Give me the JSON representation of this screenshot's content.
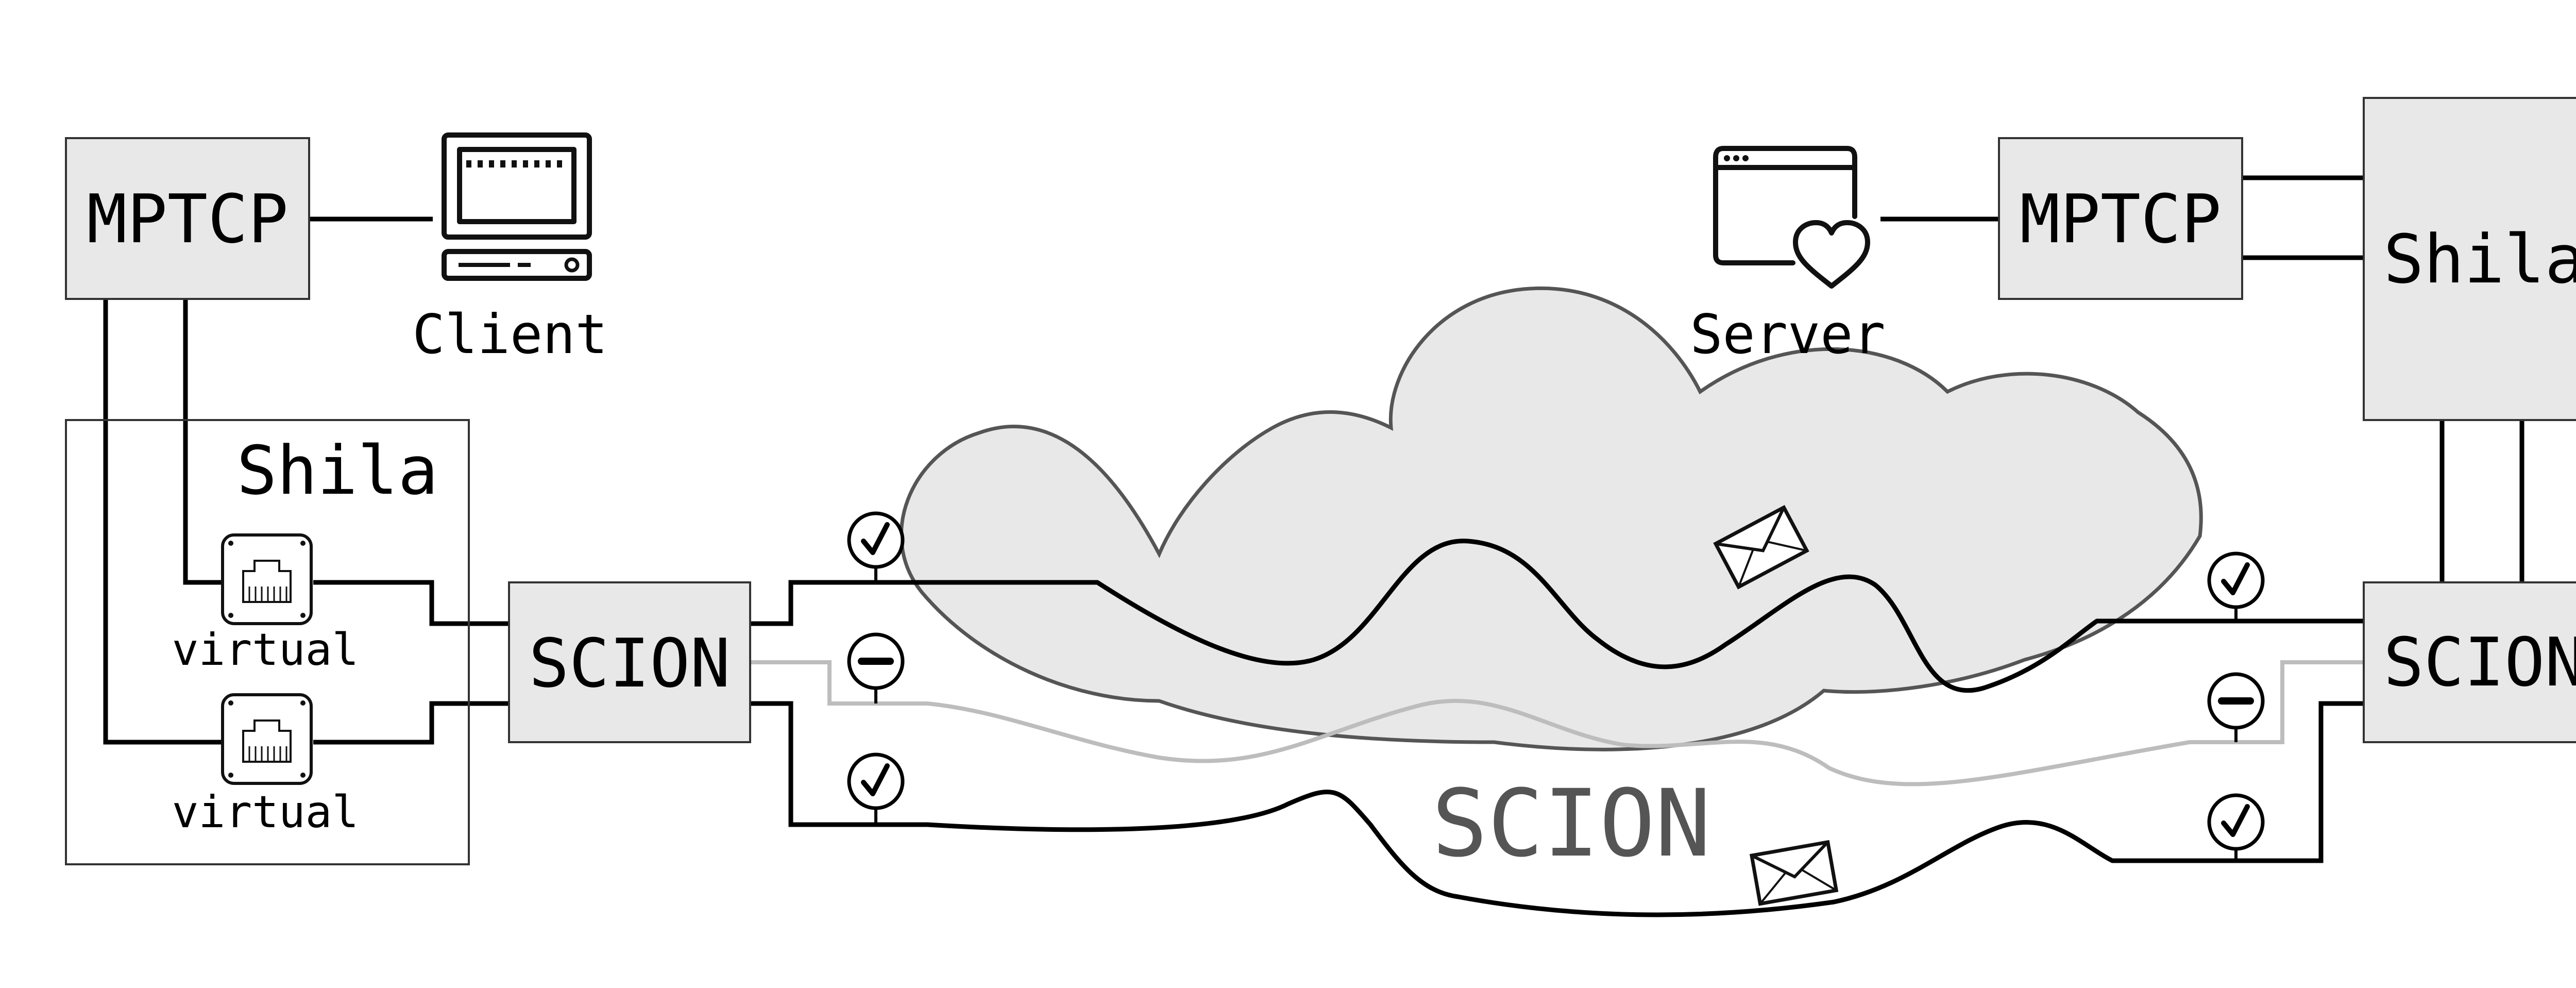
{
  "client": {
    "mptcp_label": "MPTCP",
    "name": "Client",
    "icon": "desktop-computer-icon"
  },
  "client_shila": {
    "title": "Shila",
    "interfaces": [
      {
        "label": "virtual",
        "icon": "ethernet-port-icon"
      },
      {
        "label": "virtual",
        "icon": "ethernet-port-icon"
      }
    ],
    "scion_label": "SCION"
  },
  "server": {
    "mptcp_label": "MPTCP",
    "name": "Server",
    "icon": "web-browser-heart-icon",
    "shila_label": "Shila",
    "scion_label": "SCION"
  },
  "network": {
    "label": "SCION",
    "paths": [
      {
        "status": "active",
        "badge_icon": "check-icon",
        "color": "#000000"
      },
      {
        "status": "disabled",
        "badge_icon": "minus-icon",
        "color": "#bdbdbd"
      },
      {
        "status": "active",
        "badge_icon": "check-icon",
        "color": "#000000"
      }
    ],
    "packet_icon": "envelope-icon"
  },
  "colors": {
    "box_fill": "#e8e8e8",
    "cloud_fill": "#e8e8e8",
    "cloud_stroke": "#555555",
    "inactive_path": "#bdbdbd"
  }
}
